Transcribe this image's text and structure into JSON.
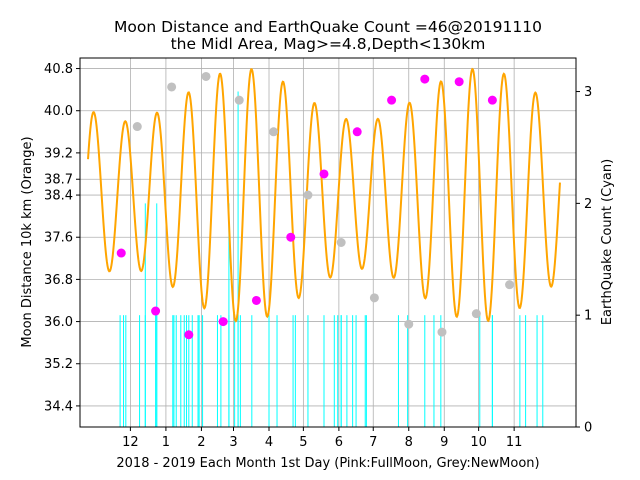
{
  "chart_data": {
    "type": "line",
    "title_line1": "Moon Distance and EarthQuake Count =46@20191110",
    "title_line2": "the Midl Area, Mag>=4.8,Depth<130km",
    "xlabel": "2018 - 2019 Each Month 1st Day (Pink:FullMoon, Grey:NewMoon)",
    "ylabel_left": "Moon Distance 10k km (Orange)",
    "ylabel_right": "EarthQuake Count (Cyan)",
    "x_tick_labels": [
      "12",
      "1",
      "2",
      "3",
      "4",
      "5",
      "6",
      "7",
      "8",
      "9",
      "10",
      "11"
    ],
    "x_tick_positions": [
      0,
      31,
      62,
      90,
      121,
      151,
      182,
      212,
      243,
      274,
      304,
      335
    ],
    "xlim": [
      -44,
      389
    ],
    "ylim_left": [
      34.0,
      41.0
    ],
    "y_left_ticks": [
      34.4,
      35.2,
      36.0,
      36.8,
      37.6,
      38.4,
      38.7,
      39.2,
      40.0,
      40.8
    ],
    "y_left_tick_labels": [
      "34.4",
      "35.2",
      "36.0",
      "36.8",
      "37.6",
      "38.4",
      "38.7",
      "39.2",
      "40.0",
      "40.8"
    ],
    "ylim_right": [
      0,
      3.3
    ],
    "y_right_ticks": [
      0,
      1,
      2,
      3
    ],
    "y_right_tick_labels": [
      "0",
      "1",
      "2",
      "3"
    ],
    "moon_distance": {
      "name": "Moon Distance",
      "color": "#ffa500",
      "x_start": -37,
      "x_end": 375,
      "mean": 38.4,
      "amplitude": 1.9,
      "amplitude_modulation": 0.5,
      "modulation_period_days": 206,
      "modulation_phase_day": 305,
      "anomalistic_period_days": 27.55,
      "apogee_reference_day": -32
    },
    "full_moon": {
      "name": "Full Moon",
      "color": "#ff00ff",
      "x": [
        -8,
        22,
        51,
        81,
        110,
        140,
        169,
        198,
        228,
        257,
        287,
        316
      ],
      "y": [
        37.3,
        36.2,
        35.75,
        36.0,
        36.4,
        37.6,
        38.8,
        39.6,
        40.2,
        40.6,
        40.55,
        40.2
      ]
    },
    "new_moon": {
      "name": "New Moon",
      "color": "#c0c0c0",
      "x": [
        6,
        36,
        66,
        95,
        125,
        155,
        184,
        213,
        243,
        272,
        302,
        331
      ],
      "y": [
        39.7,
        40.45,
        40.65,
        40.2,
        39.6,
        38.4,
        37.5,
        36.45,
        35.95,
        35.8,
        36.15,
        36.7
      ]
    },
    "earthquakes": {
      "name": "EarthQuake Count",
      "color": "#00ffff",
      "x": [
        -9,
        -6,
        -4,
        8,
        13,
        22,
        23,
        37,
        38,
        40,
        44,
        47,
        49,
        51,
        54,
        59,
        60,
        63,
        76,
        79,
        86,
        91,
        94,
        96,
        106,
        121,
        128,
        142,
        144,
        155,
        169,
        178,
        181,
        184,
        189,
        194,
        197,
        206,
        234,
        242,
        257,
        265,
        271,
        305,
        316,
        340,
        345,
        355,
        360
      ],
      "y": [
        1,
        1,
        1,
        1,
        1,
        1,
        1,
        1,
        1,
        1,
        1,
        1,
        1,
        1,
        1,
        1,
        1,
        1,
        1,
        1,
        1,
        1,
        1,
        1,
        1,
        1,
        1,
        1,
        1,
        1,
        1,
        1,
        1,
        1,
        1,
        1,
        1,
        1,
        1,
        1,
        1,
        1,
        1,
        1,
        1,
        1,
        1,
        1,
        1
      ],
      "tall_x": [
        13,
        23,
        86,
        94,
        184,
        205,
        316
      ],
      "tall_y": [
        2,
        2,
        2,
        3,
        1,
        1,
        1
      ]
    },
    "grid": true
  }
}
